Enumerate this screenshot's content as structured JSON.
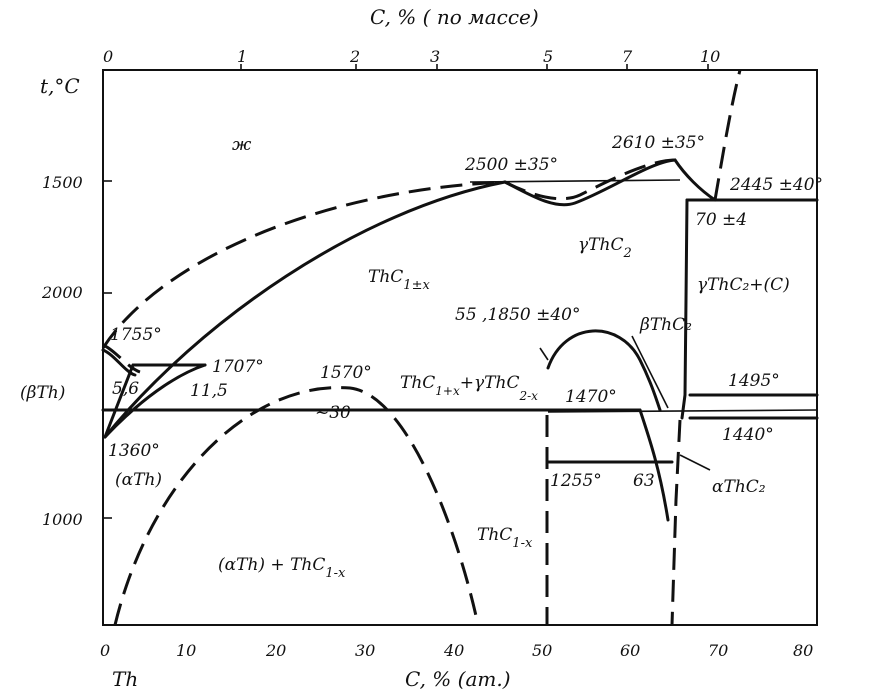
{
  "diagram": {
    "top_axis_title": "C, % ( по массе)",
    "bottom_axis_title": "C, % (ат.)",
    "y_axis_title": "t,°C",
    "left_element": "Th",
    "top_ticks": [
      "0",
      "1",
      "2",
      "3",
      "5",
      "7",
      "10"
    ],
    "bottom_ticks": [
      "0",
      "10",
      "20",
      "30",
      "40",
      "50",
      "60",
      "70",
      "80"
    ],
    "y_ticks": [
      "1500",
      "2000",
      "1000"
    ],
    "phases": {
      "liquid": "ж",
      "beta_th": "(βTh)",
      "alpha_th": "(αTh)",
      "thc1x": "ThC",
      "thc1x_sub": "1±x",
      "gamma_thc2": "γThC",
      "gamma_thc2_sub": "2",
      "gamma_thc2_c": "γThC₂+(C)",
      "two_phase_1": "ThC",
      "two_phase_1_sub1": "1+x",
      "two_phase_1_mid": "+γThC",
      "two_phase_1_sub2": "2-x",
      "beta_thc2": "βThC₂",
      "alpha_thc2": "αThC₂",
      "thc1minus": "ThC",
      "thc1minus_sub": "1-x",
      "alpha_th_thc": "(αTh) + ThC",
      "alpha_th_thc_sub": "1-x"
    },
    "annotations": {
      "t2500": "2500 ±35°",
      "t2610": "2610 ±35°",
      "t2445": "2445 ±40°",
      "c70": "70 ±4",
      "t1755": "1755°",
      "t1707": "1707°",
      "c56": "5,6",
      "c115": "11,5",
      "t1570": "1570°",
      "c30": "~30",
      "t1360": "1360°",
      "t55_1850": "55 ,1850 ±40°",
      "t1470": "1470°",
      "t1495": "1495°",
      "t1440": "1440°",
      "t1255": "1255°",
      "c63": "63"
    }
  }
}
